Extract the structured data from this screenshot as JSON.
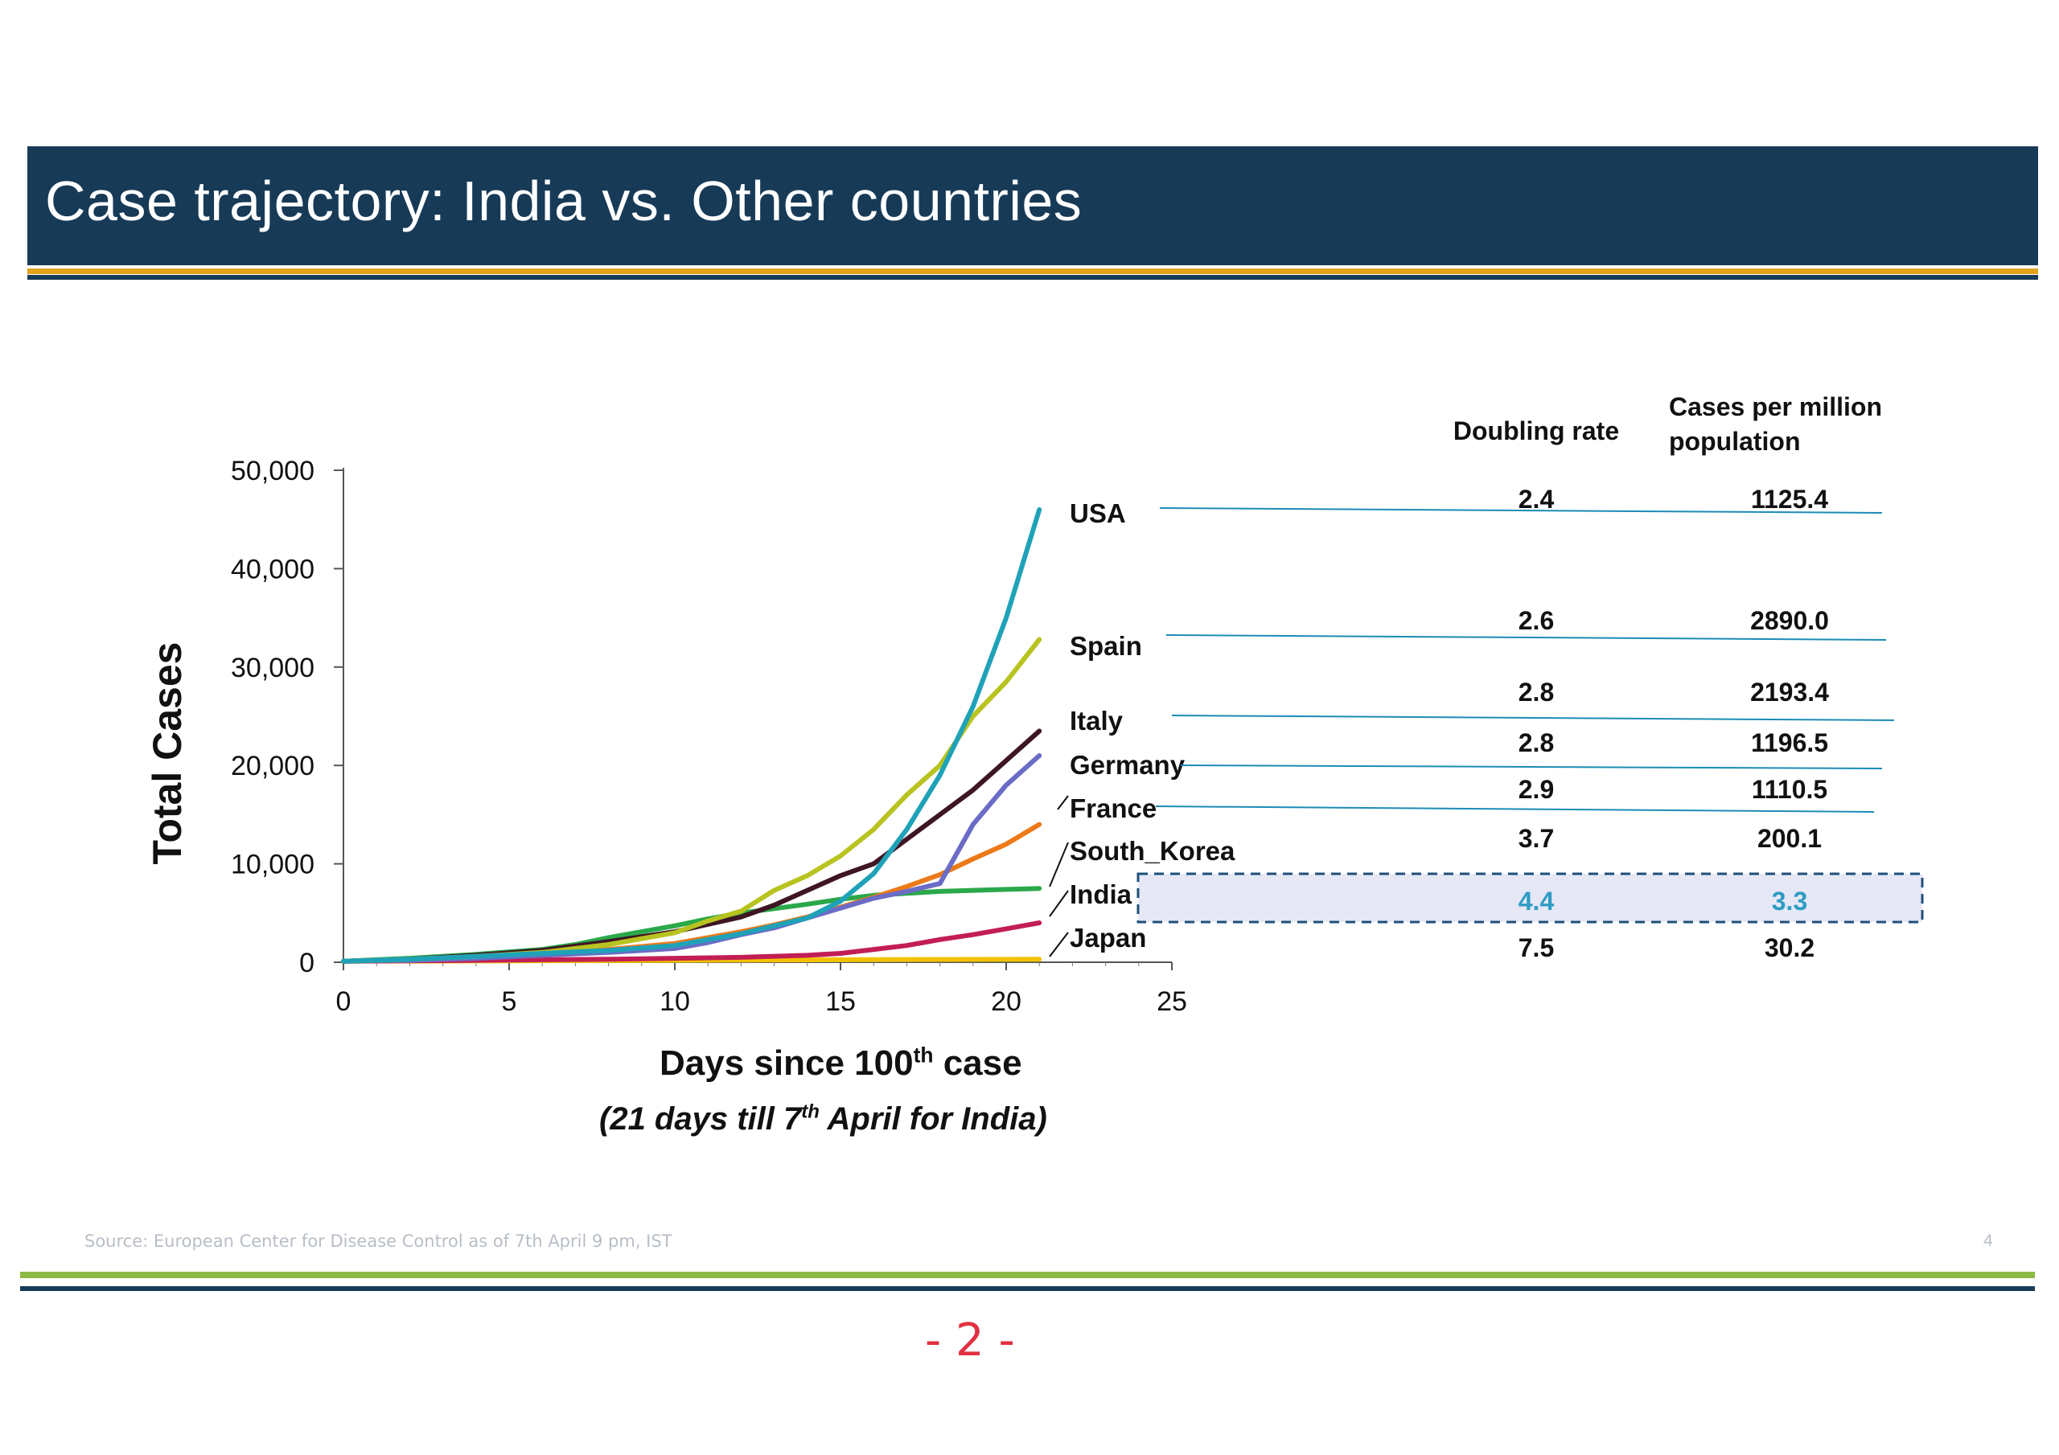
{
  "slide": {
    "title": "Case trajectory: India vs. Other countries",
    "source": "Source: European Center for Disease Control as of 7th April 9 pm, IST",
    "page_number": "4",
    "handwritten_mark": "- 2 -"
  },
  "table": {
    "col_doubling": "Doubling rate",
    "col_cases_line1": "Cases per million",
    "col_cases_line2": "population",
    "rows": [
      {
        "country": "USA",
        "doubling": "2.4",
        "cases_per_million": "1125.4"
      },
      {
        "country": "Spain",
        "doubling": "2.6",
        "cases_per_million": "2890.0"
      },
      {
        "country": "Italy",
        "doubling": "2.8",
        "cases_per_million": "2193.4"
      },
      {
        "country": "Germany",
        "doubling": "2.8",
        "cases_per_million": "1196.5"
      },
      {
        "country": "France",
        "doubling": "2.9",
        "cases_per_million": "1110.5"
      },
      {
        "country": "South_Korea",
        "doubling": "3.7",
        "cases_per_million": "200.1"
      },
      {
        "country": "India",
        "doubling": "4.4",
        "cases_per_million": "3.3",
        "highlighted": true
      },
      {
        "country": "Japan",
        "doubling": "7.5",
        "cases_per_million": "30.2"
      }
    ],
    "highlight_color": "#2e9cc4",
    "highlight_fill": "#e6e8f6"
  },
  "chart_data": {
    "type": "line",
    "ylabel": "Total Cases",
    "xlabel_main": "Days since 100",
    "xlabel_sup": "th",
    "xlabel_tail": " case",
    "xlabel_sub_pre": "(21 days till 7",
    "xlabel_sub_sup": "th",
    "xlabel_sub_tail": " April for India)",
    "xlim": [
      0,
      25
    ],
    "ylim": [
      0,
      50000
    ],
    "xticks": [
      0,
      5,
      10,
      15,
      20,
      25
    ],
    "yticks": [
      0,
      10000,
      20000,
      30000,
      40000,
      50000
    ],
    "xtick_labels": [
      "0",
      "5",
      "10",
      "15",
      "20",
      "25"
    ],
    "ytick_labels": [
      "0",
      "10,000",
      "20,000",
      "30,000",
      "40,000",
      "50,000"
    ],
    "grid": false,
    "series": [
      {
        "name": "USA",
        "color": "#1fa2b8",
        "x": [
          0,
          2,
          4,
          6,
          8,
          10,
          12,
          14,
          15,
          16,
          17,
          18,
          19,
          20,
          21
        ],
        "y": [
          100,
          300,
          600,
          900,
          1200,
          1700,
          2900,
          4500,
          6200,
          9000,
          13500,
          19000,
          26000,
          35000,
          46000
        ]
      },
      {
        "name": "Spain",
        "color": "#b8c320",
        "x": [
          0,
          2,
          4,
          6,
          8,
          10,
          11,
          12,
          13,
          14,
          15,
          16,
          17,
          18,
          19,
          20,
          21
        ],
        "y": [
          100,
          300,
          600,
          1000,
          1800,
          3000,
          4200,
          5200,
          7300,
          8800,
          10800,
          13500,
          17000,
          20000,
          25000,
          28500,
          32800
        ]
      },
      {
        "name": "Italy",
        "color": "#3e1623",
        "x": [
          0,
          2,
          4,
          6,
          8,
          10,
          12,
          13,
          14,
          15,
          16,
          17,
          18,
          19,
          20,
          21
        ],
        "y": [
          100,
          300,
          700,
          1200,
          2100,
          3100,
          4600,
          5800,
          7300,
          8800,
          10000,
          12500,
          15000,
          17500,
          20500,
          23500
        ]
      },
      {
        "name": "Germany",
        "color": "#6a6cc6",
        "x": [
          0,
          2,
          4,
          6,
          8,
          10,
          11,
          12,
          13,
          14,
          15,
          16,
          17,
          18,
          19,
          20,
          21
        ],
        "y": [
          100,
          200,
          400,
          700,
          1000,
          1400,
          2000,
          2800,
          3500,
          4500,
          5500,
          6500,
          7200,
          8000,
          14000,
          18000,
          21000
        ]
      },
      {
        "name": "France",
        "color": "#ec7a18",
        "x": [
          0,
          2,
          4,
          6,
          8,
          10,
          12,
          13,
          14,
          15,
          16,
          17,
          18,
          19,
          20,
          21
        ],
        "y": [
          100,
          250,
          500,
          900,
          1300,
          1900,
          3100,
          3800,
          4600,
          5600,
          6600,
          7700,
          8900,
          10500,
          12000,
          14000
        ]
      },
      {
        "name": "South_Korea",
        "color": "#2aa84a",
        "x": [
          0,
          2,
          4,
          6,
          7,
          8,
          10,
          11,
          12,
          14,
          15,
          16,
          17,
          18,
          19,
          20,
          21
        ],
        "y": [
          100,
          400,
          800,
          1300,
          1800,
          2500,
          3700,
          4400,
          5000,
          5900,
          6400,
          6800,
          7000,
          7200,
          7300,
          7400,
          7500
        ]
      },
      {
        "name": "India",
        "color": "#c21e55",
        "x": [
          0,
          4,
          8,
          10,
          12,
          14,
          15,
          16,
          17,
          18,
          19,
          20,
          21
        ],
        "y": [
          100,
          200,
          300,
          400,
          500,
          700,
          900,
          1300,
          1700,
          2300,
          2800,
          3400,
          4000
        ]
      },
      {
        "name": "Japan",
        "color": "#f2c200",
        "x": [
          0,
          5,
          10,
          15,
          21
        ],
        "y": [
          100,
          150,
          200,
          250,
          300
        ]
      }
    ]
  }
}
